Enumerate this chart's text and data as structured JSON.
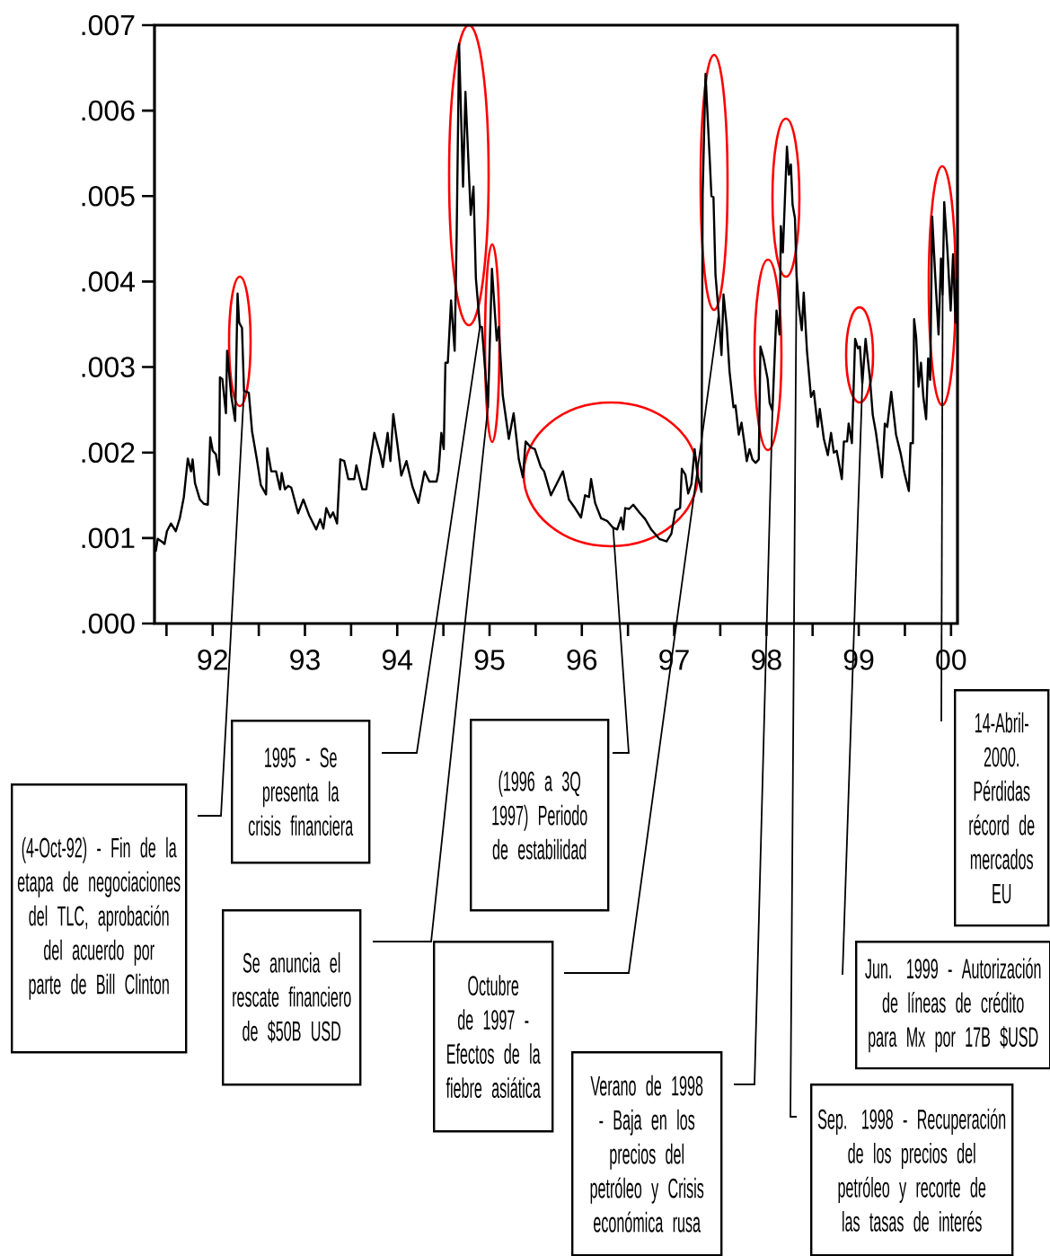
{
  "chart_data": {
    "type": "line",
    "color": "#000000",
    "x": [
      1991.383,
      1991.405,
      1991.448,
      1991.479,
      1991.505,
      1991.548,
      1991.601,
      1991.644,
      1991.688,
      1991.731,
      1991.766,
      1991.783,
      1991.809,
      1991.862,
      1991.905,
      1991.948,
      1991.974,
      1992.001,
      1992.035,
      1992.07,
      1992.079,
      1992.105,
      1992.144,
      1992.157,
      1992.201,
      1992.244,
      1992.27,
      1992.287,
      1992.318,
      1992.34,
      1992.392,
      1992.427,
      1992.479,
      1992.522,
      1992.579,
      1992.592,
      1992.635,
      1992.687,
      1992.731,
      1992.748,
      1992.783,
      1992.818,
      1992.852,
      1992.926,
      1992.983,
      1993.044,
      1993.122,
      1993.165,
      1993.2,
      1993.231,
      1993.274,
      1993.305,
      1993.348,
      1993.383,
      1993.426,
      1993.47,
      1993.535,
      1993.557,
      1993.622,
      1993.665,
      1993.709,
      1993.752,
      1993.818,
      1993.844,
      1993.896,
      1993.926,
      1993.957,
      1994.0,
      1994.044,
      1994.1,
      1994.165,
      1994.23,
      1994.296,
      1994.348,
      1994.426,
      1994.448,
      1994.478,
      1994.504,
      1994.522,
      1994.548,
      1994.583,
      1994.622,
      1994.644,
      1994.67,
      1994.713,
      1994.739,
      1994.796,
      1994.826,
      1994.852,
      1994.896,
      1994.917,
      1994.983,
      1995.026,
      1995.078,
      1995.1,
      1995.143,
      1995.209,
      1995.261,
      1995.317,
      1995.361,
      1995.391,
      1995.448,
      1995.491,
      1995.556,
      1995.591,
      1995.665,
      1995.73,
      1995.795,
      1995.86,
      1995.926,
      1995.991,
      1996.035,
      1996.078,
      1996.1,
      1996.144,
      1996.209,
      1996.274,
      1996.339,
      1996.383,
      1996.426,
      1996.448,
      1996.47,
      1996.513,
      1996.557,
      1996.622,
      1996.687,
      1996.752,
      1996.839,
      1996.918,
      1996.97,
      1997.013,
      1997.065,
      1997.083,
      1997.122,
      1997.152,
      1997.187,
      1997.222,
      1997.252,
      1997.296,
      1997.309,
      1997.34,
      1997.383,
      1997.404,
      1997.426,
      1997.448,
      1997.483,
      1997.513,
      1997.535,
      1997.57,
      1997.6,
      1997.643,
      1997.665,
      1997.7,
      1997.73,
      1997.761,
      1997.787,
      1997.817,
      1997.848,
      1997.883,
      1997.917,
      1997.935,
      1997.97,
      1998.013,
      1998.035,
      1998.065,
      1998.109,
      1998.143,
      1998.156,
      1998.178,
      1998.222,
      1998.243,
      1998.265,
      1998.283,
      1998.309,
      1998.326,
      1998.352,
      1998.383,
      1998.404,
      1998.439,
      1998.483,
      1998.513,
      1998.556,
      1998.578,
      1998.622,
      1998.665,
      1998.7,
      1998.73,
      1998.761,
      1998.817,
      1998.839,
      1998.874,
      1998.891,
      1998.926,
      1998.961,
      1998.991,
      1999.013,
      1999.039,
      1999.074,
      1999.122,
      1999.152,
      1999.187,
      1999.222,
      1999.252,
      1999.283,
      1999.309,
      1999.352,
      1999.404,
      1999.456,
      1999.491,
      1999.543,
      1999.561,
      1999.587,
      1999.6,
      1999.622,
      1999.648,
      1999.674,
      1999.7,
      1999.73,
      1999.752,
      1999.774,
      1999.796,
      1999.83,
      1999.865,
      1999.891,
      1999.909,
      1999.926,
      1999.961,
      1999.996,
      2000.022,
      2000.048,
      2000.065
    ],
    "values": [
      0.00084,
      0.00099,
      0.00096,
      0.00093,
      0.00108,
      0.00117,
      0.00108,
      0.00123,
      0.00148,
      0.00193,
      0.00178,
      0.00192,
      0.00164,
      0.00145,
      0.0014,
      0.00139,
      0.00218,
      0.00202,
      0.00198,
      0.00174,
      0.00288,
      0.00286,
      0.00246,
      0.00319,
      0.00267,
      0.00237,
      0.00386,
      0.00352,
      0.00346,
      0.00272,
      0.0027,
      0.00225,
      0.00192,
      0.00162,
      0.00151,
      0.00205,
      0.00178,
      0.00178,
      0.00157,
      0.00176,
      0.00157,
      0.00161,
      0.00159,
      0.00129,
      0.00145,
      0.00127,
      0.0011,
      0.00122,
      0.00111,
      0.00135,
      0.00124,
      0.0013,
      0.00117,
      0.00192,
      0.0019,
      0.00169,
      0.00169,
      0.00185,
      0.00157,
      0.00157,
      0.00192,
      0.00223,
      0.00197,
      0.00183,
      0.00223,
      0.0019,
      0.00245,
      0.00211,
      0.00173,
      0.0019,
      0.0016,
      0.00141,
      0.00178,
      0.00166,
      0.00166,
      0.00178,
      0.00223,
      0.00204,
      0.00305,
      0.00305,
      0.00378,
      0.00319,
      0.00455,
      0.00678,
      0.00511,
      0.00622,
      0.00478,
      0.00511,
      0.00404,
      0.00347,
      0.00347,
      0.00253,
      0.00415,
      0.00331,
      0.00347,
      0.00267,
      0.00216,
      0.00246,
      0.00192,
      0.00171,
      0.00213,
      0.00206,
      0.00204,
      0.00183,
      0.00178,
      0.0015,
      0.00164,
      0.00178,
      0.00145,
      0.00135,
      0.00124,
      0.0015,
      0.00148,
      0.00169,
      0.00141,
      0.00123,
      0.0012,
      0.00112,
      0.0011,
      0.00124,
      0.0011,
      0.00135,
      0.00134,
      0.00139,
      0.0013,
      0.00122,
      0.0011,
      0.00099,
      0.00096,
      0.00105,
      0.00132,
      0.00135,
      0.00181,
      0.00174,
      0.00152,
      0.00163,
      0.00204,
      0.00174,
      0.00154,
      0.00502,
      0.00643,
      0.00549,
      0.005,
      0.00499,
      0.00408,
      0.00362,
      0.00314,
      0.00385,
      0.00347,
      0.00295,
      0.00253,
      0.00255,
      0.00221,
      0.00235,
      0.00211,
      0.0019,
      0.00204,
      0.00192,
      0.00188,
      0.00192,
      0.00324,
      0.0031,
      0.00286,
      0.00258,
      0.00249,
      0.00366,
      0.00338,
      0.00465,
      0.00434,
      0.00558,
      0.00525,
      0.00537,
      0.0049,
      0.00474,
      0.00408,
      0.0037,
      0.00343,
      0.00387,
      0.00319,
      0.00265,
      0.00272,
      0.0023,
      0.00251,
      0.00216,
      0.00197,
      0.00223,
      0.002,
      0.00202,
      0.00169,
      0.00213,
      0.00213,
      0.00234,
      0.00211,
      0.00333,
      0.00322,
      0.00324,
      0.00281,
      0.00333,
      0.00286,
      0.00244,
      0.00223,
      0.00195,
      0.00171,
      0.00234,
      0.0023,
      0.00271,
      0.00221,
      0.00198,
      0.00178,
      0.00155,
      0.00211,
      0.00211,
      0.00356,
      0.00335,
      0.00277,
      0.00305,
      0.00265,
      0.00239,
      0.0031,
      0.00285,
      0.00476,
      0.00404,
      0.00338,
      0.00427,
      0.00385,
      0.00493,
      0.00436,
      0.00366,
      0.00432,
      0.00352,
      0.00404
    ],
    "xlim": [
      1991.37,
      2000.07
    ],
    "ylim": [
      0,
      0.007
    ],
    "xticks": [
      {
        "value": 1991.5,
        "label": null
      },
      {
        "value": 1992,
        "label": "92"
      },
      {
        "value": 1992.5,
        "label": null
      },
      {
        "value": 1993,
        "label": "93"
      },
      {
        "value": 1993.5,
        "label": null
      },
      {
        "value": 1994,
        "label": "94"
      },
      {
        "value": 1994.5,
        "label": null
      },
      {
        "value": 1995,
        "label": "95"
      },
      {
        "value": 1995.5,
        "label": null
      },
      {
        "value": 1996,
        "label": "96"
      },
      {
        "value": 1996.5,
        "label": null
      },
      {
        "value": 1997,
        "label": "97"
      },
      {
        "value": 1997.5,
        "label": null
      },
      {
        "value": 1998,
        "label": "98"
      },
      {
        "value": 1998.5,
        "label": null
      },
      {
        "value": 1999,
        "label": "99"
      },
      {
        "value": 1999.5,
        "label": null
      },
      {
        "value": 2000,
        "label": "00"
      }
    ],
    "yticks": [
      {
        "value": 0,
        "label": ".000"
      },
      {
        "value": 0.001,
        "label": ".001"
      },
      {
        "value": 0.002,
        "label": ".002"
      },
      {
        "value": 0.003,
        "label": ".003"
      },
      {
        "value": 0.004,
        "label": ".004"
      },
      {
        "value": 0.005,
        "label": ".005"
      },
      {
        "value": 0.006,
        "label": ".006"
      },
      {
        "value": 0.007,
        "label": ".007"
      }
    ],
    "annotations": [
      {
        "text": "(4-Oct-92) - Fin de la etapa de negociaciones del TLC, aprobación del acuerdo por parte de Bill Clinton",
        "x": 1992.34,
        "y": 0.00272
      },
      {
        "text": "1995 - Se presenta la crisis financiera",
        "x": 1994.896,
        "y": 0.00347
      },
      {
        "text": "Se anuncia el rescate financiero de $50B USD",
        "x": 1994.983,
        "y": 0.00253
      },
      {
        "text": "(1996 a 3Q 1997) Periodo de estabilidad",
        "x": 1996.339,
        "y": 0.00112
      },
      {
        "text": "Octubre de 1997 - Efectos de la fiebre asiática",
        "x": 1997.483,
        "y": 0.00362
      },
      {
        "text": "Verano de 1998 - Baja en los precios del petróleo y Crisis económica rusa",
        "x": 1998.065,
        "y": 0.00249
      },
      {
        "text": "Sep. 1998 - Recuperación de los precios del petróleo y recorte de las tasas de interés",
        "x": 1998.326,
        "y": 0.00408
      },
      {
        "text": "Jun. 1999 - Autorización de líneas de crédito para Mx por 17B $USD",
        "x": 1999.039,
        "y": 0.00281
      },
      {
        "text": "14-Abril-2000. Pérdidas récord de mercados EU",
        "x": 1999.909,
        "y": 0.00385
      }
    ]
  }
}
